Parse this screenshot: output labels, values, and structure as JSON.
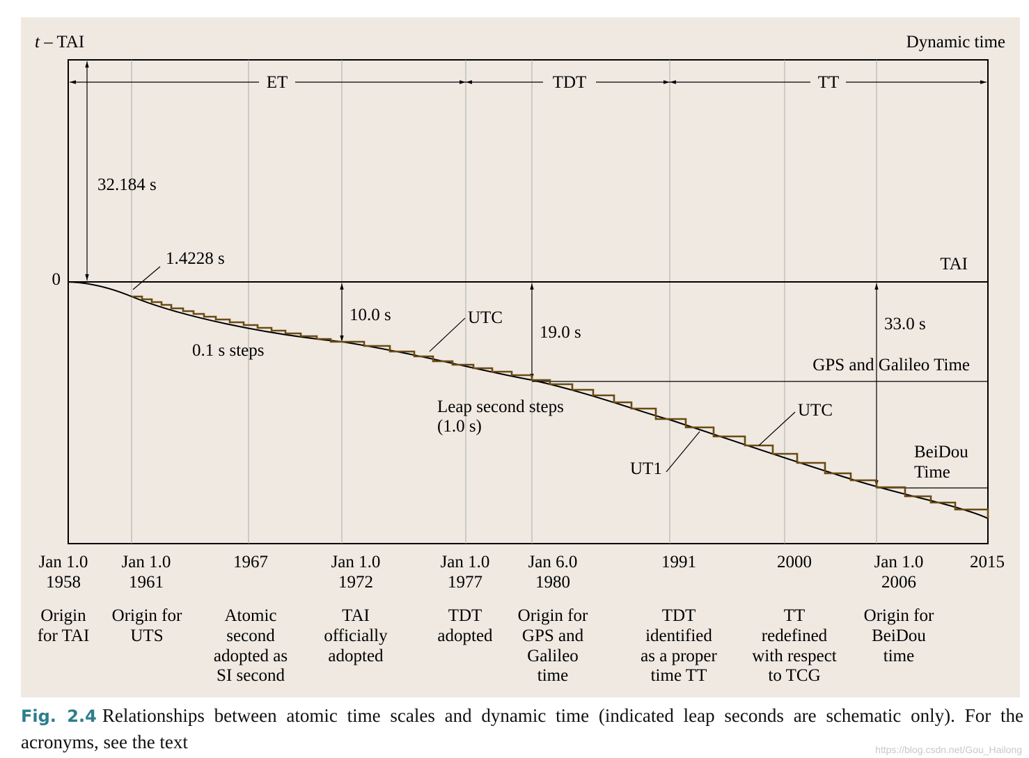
{
  "figure": {
    "y_axis_label_italic": "t",
    "y_axis_label_rest": " – TAI",
    "top_right_label": "Dynamic time",
    "zero_label": "0",
    "tai_label": "TAI",
    "offset_32184": "32.184 s",
    "offset_14228": "1.4228 s",
    "offset_10": "10.0 s",
    "offset_19": "19.0 s",
    "offset_33": "33.0 s",
    "label_01_steps": "0.1 s steps",
    "label_utc_upper": "UTC",
    "label_utc_lower": "UTC",
    "label_leap_1": "Leap second steps",
    "label_leap_2": "(1.0 s)",
    "label_ut1": "UT1",
    "label_gps": "GPS and Galileo Time",
    "label_beidou_1": "BeiDou",
    "label_beidou_2": "Time",
    "eras": [
      {
        "name": "ET"
      },
      {
        "name": "TDT"
      },
      {
        "name": "TT"
      }
    ],
    "dates": [
      {
        "lines": [
          "Jan 1.0",
          "1958"
        ],
        "desc": [
          "Origin",
          "for TAI"
        ]
      },
      {
        "lines": [
          "Jan 1.0",
          "1961"
        ],
        "desc": [
          "Origin for",
          "UTS"
        ]
      },
      {
        "lines": [
          "1967"
        ],
        "desc": [
          "Atomic",
          "second",
          "adopted as",
          "SI second"
        ]
      },
      {
        "lines": [
          "Jan 1.0",
          "1972"
        ],
        "desc": [
          "TAI",
          "officially",
          "adopted"
        ]
      },
      {
        "lines": [
          "Jan 1.0",
          "1977"
        ],
        "desc": [
          "TDT",
          "adopted"
        ]
      },
      {
        "lines": [
          "Jan 6.0",
          "1980"
        ],
        "desc": [
          "Origin for",
          "GPS and",
          "Galileo",
          "time"
        ]
      },
      {
        "lines": [
          "1991"
        ],
        "desc": [
          "TDT",
          "identified",
          "as a proper",
          "time TT"
        ]
      },
      {
        "lines": [
          "2000"
        ],
        "desc": [
          "TT",
          "redefined",
          "with respect",
          "to TCG"
        ]
      },
      {
        "lines": [
          "Jan 1.0",
          "2006"
        ],
        "desc": [
          "Origin for",
          "BeiDou",
          "time"
        ]
      },
      {
        "lines": [
          "2015"
        ],
        "desc": []
      }
    ]
  },
  "caption": {
    "label": "Fig. 2.4",
    "text": "Relationships between atomic time scales and dynamic time (indicated leap seconds are schematic only). For the acronyms, see the text"
  },
  "watermark": "https://blog.csdn.net/Gou_Hailong",
  "colors": {
    "panel_bg": "#efe9e2",
    "utc_steps": "#6b4a12",
    "caption_label": "#2e7e8c"
  }
}
